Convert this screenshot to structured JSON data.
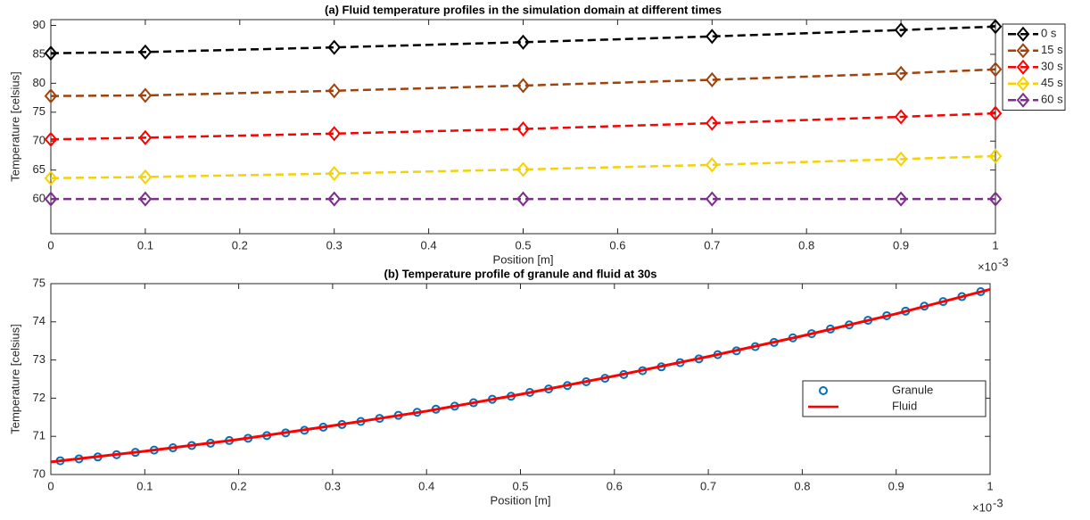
{
  "chart_data": [
    {
      "type": "line",
      "title": "(a) Fluid temperature profiles in the simulation domain at different times",
      "xlabel": "Position [m]",
      "ylabel": "Temperature [celsius]",
      "x_multiplier": {
        "base": "×10",
        "exponent": "-3"
      },
      "x": [
        0,
        0.1,
        0.3,
        0.5,
        0.7,
        0.9,
        1
      ],
      "xlim": [
        0,
        1
      ],
      "xticks": [
        0,
        0.1,
        0.2,
        0.3,
        0.4,
        0.5,
        0.6,
        0.7,
        0.8,
        0.9,
        1
      ],
      "ylim": [
        54,
        91
      ],
      "yticks": [
        60,
        65,
        70,
        75,
        80,
        85,
        90
      ],
      "legend_position": "outside-top-right",
      "series": [
        {
          "name": "0 s",
          "color": "#000000",
          "marker": "diamond",
          "line": "dashed",
          "values": [
            85.2,
            85.4,
            86.2,
            87.1,
            88.1,
            89.2,
            89.8
          ]
        },
        {
          "name": "15 s",
          "color": "#a0420a",
          "marker": "diamond",
          "line": "dashed",
          "values": [
            77.8,
            77.9,
            78.7,
            79.6,
            80.6,
            81.7,
            82.4
          ]
        },
        {
          "name": "30 s",
          "color": "#ff0000",
          "marker": "diamond",
          "line": "dashed",
          "values": [
            70.3,
            70.6,
            71.3,
            72.1,
            73.1,
            74.2,
            74.8
          ]
        },
        {
          "name": "45 s",
          "color": "#f5d200",
          "marker": "diamond",
          "line": "dashed",
          "values": [
            63.6,
            63.8,
            64.4,
            65.1,
            65.9,
            66.9,
            67.4
          ]
        },
        {
          "name": "60 s",
          "color": "#7e2f8e",
          "marker": "diamond",
          "line": "dashed",
          "values": [
            60,
            60,
            60,
            60,
            60,
            60,
            60
          ]
        }
      ]
    },
    {
      "type": "line",
      "title": "(b) Temperature profile of granule and fluid at 30s",
      "xlabel": "Position [m]",
      "ylabel": "Temperature [celsius]",
      "x_multiplier": {
        "base": "×10",
        "exponent": "-3"
      },
      "xlim": [
        0,
        1
      ],
      "xticks": [
        0,
        0.1,
        0.2,
        0.3,
        0.4,
        0.5,
        0.6,
        0.7,
        0.8,
        0.9,
        1
      ],
      "ylim": [
        70,
        75
      ],
      "yticks": [
        70,
        71,
        72,
        73,
        74,
        75
      ],
      "legend_position": "inside-right",
      "series": [
        {
          "name": "Granule",
          "color": "#0072bd",
          "marker": "circle",
          "line": "none",
          "x": [
            0.01,
            0.03,
            0.05,
            0.07,
            0.09,
            0.11,
            0.13,
            0.15,
            0.17,
            0.19,
            0.21,
            0.23,
            0.25,
            0.27,
            0.29,
            0.31,
            0.33,
            0.35,
            0.37,
            0.39,
            0.41,
            0.43,
            0.45,
            0.47,
            0.49,
            0.51,
            0.53,
            0.55,
            0.57,
            0.59,
            0.61,
            0.63,
            0.65,
            0.67,
            0.69,
            0.71,
            0.73,
            0.75,
            0.77,
            0.79,
            0.81,
            0.83,
            0.85,
            0.87,
            0.89,
            0.91,
            0.93,
            0.95,
            0.97,
            0.99
          ],
          "values": [
            70.36,
            70.41,
            70.46,
            70.52,
            70.58,
            70.64,
            70.7,
            70.76,
            70.82,
            70.89,
            70.95,
            71.02,
            71.09,
            71.16,
            71.24,
            71.31,
            71.39,
            71.47,
            71.55,
            71.63,
            71.71,
            71.79,
            71.88,
            71.97,
            72.05,
            72.15,
            72.24,
            72.33,
            72.43,
            72.52,
            72.62,
            72.72,
            72.82,
            72.93,
            73.03,
            73.14,
            73.24,
            73.35,
            73.46,
            73.58,
            73.69,
            73.81,
            73.92,
            74.04,
            74.16,
            74.28,
            74.41,
            74.53,
            74.66,
            74.79
          ]
        },
        {
          "name": "Fluid",
          "color": "#ff0000",
          "marker": "none",
          "line": "solid",
          "x": [
            0,
            0.1,
            0.2,
            0.3,
            0.4,
            0.5,
            0.6,
            0.7,
            0.8,
            0.9,
            1
          ],
          "values": [
            70.33,
            70.61,
            70.92,
            71.28,
            71.66,
            72.1,
            72.58,
            73.09,
            73.63,
            74.21,
            74.85
          ]
        }
      ]
    }
  ]
}
